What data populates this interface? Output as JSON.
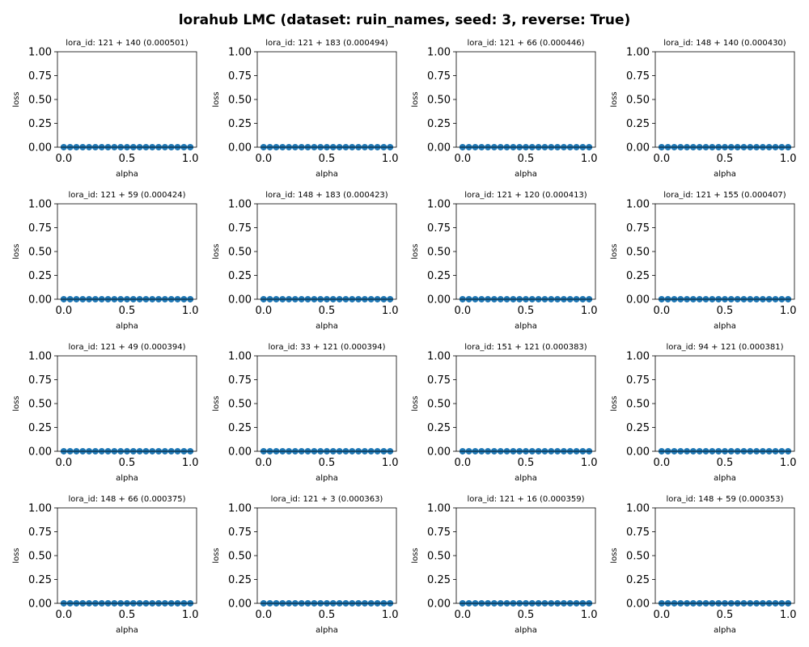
{
  "figure": {
    "suptitle": "lorahub LMC (dataset: ruin_names, seed: 3, reverse: True)",
    "point_color": "#1f77b4"
  },
  "chart_data": {
    "type": "scatter",
    "grid": false,
    "shared": {
      "xlabel": "alpha",
      "ylabel": "loss",
      "xlim": [
        -0.05,
        1.05
      ],
      "ylim": [
        0.0,
        1.0
      ],
      "xticks": [
        0.0,
        0.5,
        1.0
      ],
      "xtick_labels": [
        "0.0",
        "0.5",
        "1.0"
      ],
      "yticks": [
        0.0,
        0.25,
        0.5,
        0.75,
        1.0
      ],
      "ytick_labels": [
        "0.00",
        "0.25",
        "0.50",
        "0.75",
        "1.00"
      ],
      "x": [
        0.0,
        0.05,
        0.1,
        0.15,
        0.2,
        0.25,
        0.3,
        0.35,
        0.4,
        0.45,
        0.5,
        0.55,
        0.6,
        0.65,
        0.7,
        0.75,
        0.8,
        0.85,
        0.9,
        0.95,
        1.0
      ]
    },
    "panels": [
      {
        "title": "lora_id: 121 + 140 (0.000501)",
        "loss": 0.000501
      },
      {
        "title": "lora_id: 121 + 183 (0.000494)",
        "loss": 0.000494
      },
      {
        "title": "lora_id: 121 + 66 (0.000446)",
        "loss": 0.000446
      },
      {
        "title": "lora_id: 148 + 140 (0.000430)",
        "loss": 0.00043
      },
      {
        "title": "lora_id: 121 + 59 (0.000424)",
        "loss": 0.000424
      },
      {
        "title": "lora_id: 148 + 183 (0.000423)",
        "loss": 0.000423
      },
      {
        "title": "lora_id: 121 + 120 (0.000413)",
        "loss": 0.000413
      },
      {
        "title": "lora_id: 121 + 155 (0.000407)",
        "loss": 0.000407
      },
      {
        "title": "lora_id: 121 + 49 (0.000394)",
        "loss": 0.000394
      },
      {
        "title": "lora_id: 33 + 121 (0.000394)",
        "loss": 0.000394
      },
      {
        "title": "lora_id: 151 + 121 (0.000383)",
        "loss": 0.000383
      },
      {
        "title": "lora_id: 94 + 121 (0.000381)",
        "loss": 0.000381
      },
      {
        "title": "lora_id: 148 + 66 (0.000375)",
        "loss": 0.000375
      },
      {
        "title": "lora_id: 121 + 3 (0.000363)",
        "loss": 0.000363
      },
      {
        "title": "lora_id: 121 + 16 (0.000359)",
        "loss": 0.000359
      },
      {
        "title": "lora_id: 148 + 59 (0.000353)",
        "loss": 0.000353
      }
    ]
  }
}
